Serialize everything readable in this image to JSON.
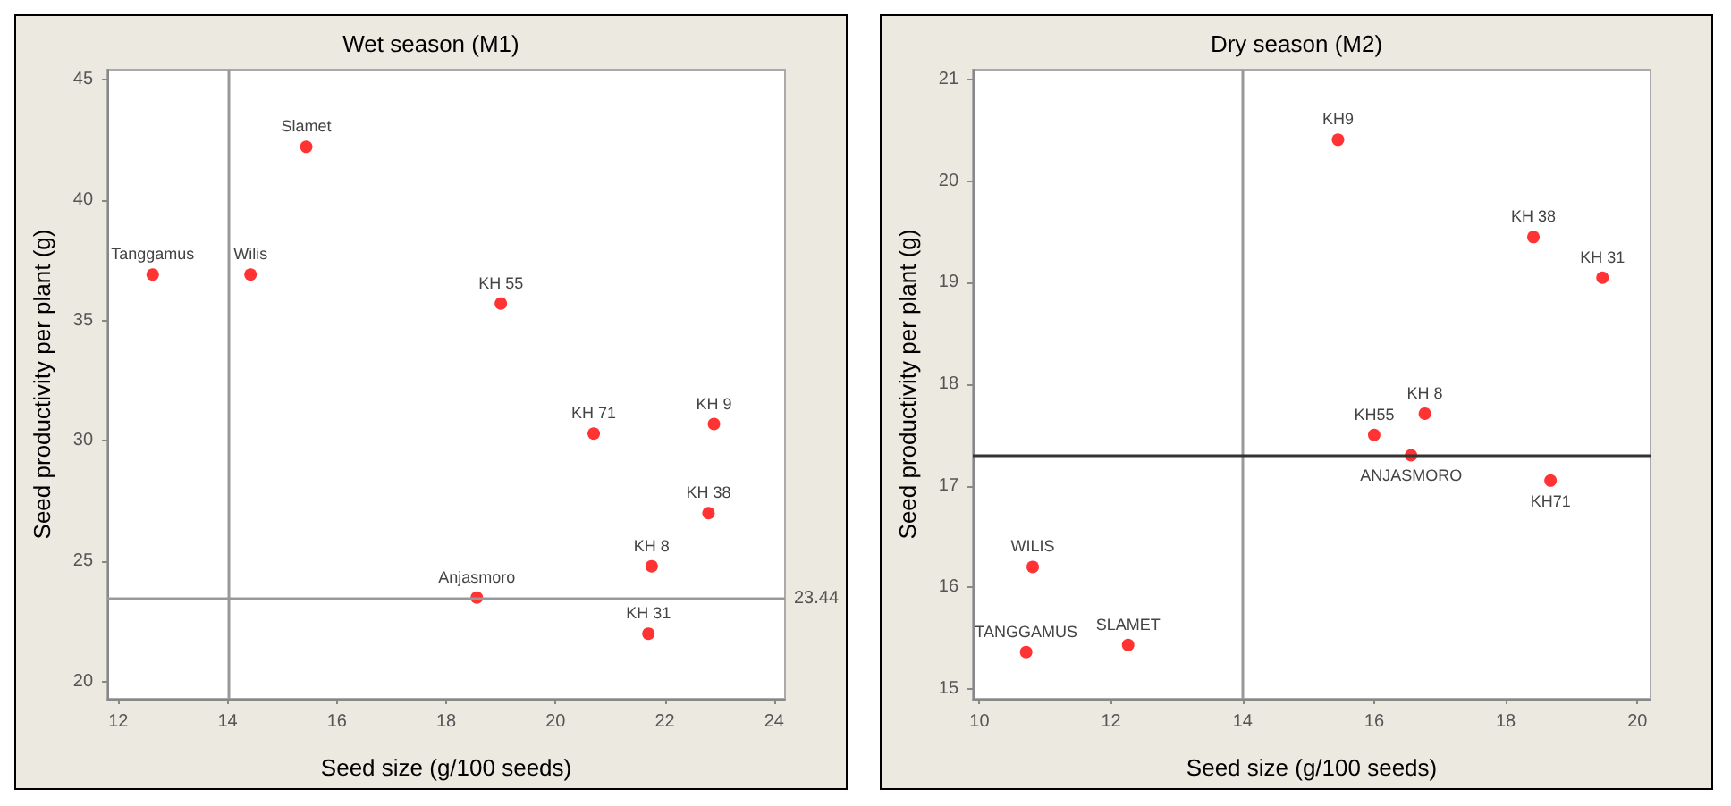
{
  "chart_data": [
    {
      "type": "scatter",
      "title": "Wet season (M1)",
      "xlabel": "Seed size (g/100 seeds)",
      "ylabel": "Seed productivity per plant (g)",
      "marker": "circle",
      "xlim": [
        11.8,
        24.2
      ],
      "xticks": [
        12,
        14,
        16,
        18,
        20,
        22,
        24
      ],
      "ylim": [
        19.3,
        45.4
      ],
      "yticks": [
        20,
        25,
        30,
        35,
        40,
        45
      ],
      "x": [
        12.63,
        14.42,
        15.44,
        19.0,
        20.7,
        22.9,
        22.8,
        21.76,
        18.56,
        21.7
      ],
      "series": [
        {
          "color": "#ff0000",
          "values": [
            36.9,
            36.9,
            42.2,
            35.7,
            30.3,
            30.7,
            27.0,
            24.8,
            23.5,
            22.0
          ]
        }
      ],
      "ref_lines": [
        {
          "axis": "x",
          "value": 14,
          "color": "#999999"
        },
        {
          "axis": "y",
          "value": 23.44,
          "label": "23.44",
          "color": "#999999"
        }
      ],
      "annotations": [
        {
          "text": "Tanggamus",
          "x": 12.63,
          "y": 36.9
        },
        {
          "text": "Wilis",
          "x": 14.42,
          "y": 36.9
        },
        {
          "text": "Slamet",
          "x": 15.44,
          "y": 42.2
        },
        {
          "text": "KH 55",
          "x": 19.0,
          "y": 35.7
        },
        {
          "text": "KH 71",
          "x": 20.7,
          "y": 30.3
        },
        {
          "text": "KH 9",
          "x": 22.9,
          "y": 30.7
        },
        {
          "text": "KH 38",
          "x": 22.8,
          "y": 27.0
        },
        {
          "text": "KH 8",
          "x": 21.76,
          "y": 24.8
        },
        {
          "text": "Anjasmoro",
          "x": 18.56,
          "y": 23.5
        },
        {
          "text": "KH 31",
          "x": 21.7,
          "y": 22.0
        }
      ]
    },
    {
      "type": "scatter",
      "title": "Dry season (M2)",
      "xlabel": "Seed size (g/100 seeds)",
      "ylabel": "Seed productivity per plant (g)",
      "marker": "circle",
      "xlim": [
        9.9,
        20.2
      ],
      "xticks": [
        10,
        12,
        14,
        16,
        18,
        20
      ],
      "ylim": [
        14.9,
        21.1
      ],
      "yticks": [
        15,
        16,
        17,
        18,
        19,
        20,
        21
      ],
      "x": [
        15.45,
        18.42,
        19.47,
        16.77,
        16.0,
        16.56,
        18.68,
        10.81,
        10.71,
        12.26
      ],
      "series": [
        {
          "color": "#ff0000",
          "values": [
            20.41,
            19.45,
            19.05,
            17.71,
            17.5,
            17.3,
            17.05,
            16.2,
            15.36,
            15.43
          ]
        }
      ],
      "ref_lines": [
        {
          "axis": "x",
          "value": 14,
          "color": "#999999"
        },
        {
          "axis": "y",
          "value": 17.3,
          "color": "#333333"
        }
      ],
      "annotations": [
        {
          "text": "KH9",
          "x": 15.45,
          "y": 20.41
        },
        {
          "text": "KH 38",
          "x": 18.42,
          "y": 19.45
        },
        {
          "text": "KH 31",
          "x": 19.47,
          "y": 19.05
        },
        {
          "text": "KH 8",
          "x": 16.77,
          "y": 17.71
        },
        {
          "text": "KH55",
          "x": 16.0,
          "y": 17.5
        },
        {
          "text": "ANJASMORO",
          "x": 16.56,
          "y": 17.3
        },
        {
          "text": "KH71",
          "x": 18.68,
          "y": 17.05
        },
        {
          "text": "WILIS",
          "x": 10.81,
          "y": 16.2
        },
        {
          "text": "TANGGAMUS",
          "x": 10.71,
          "y": 15.36
        },
        {
          "text": "SLAMET",
          "x": 12.26,
          "y": 15.43
        }
      ]
    }
  ]
}
